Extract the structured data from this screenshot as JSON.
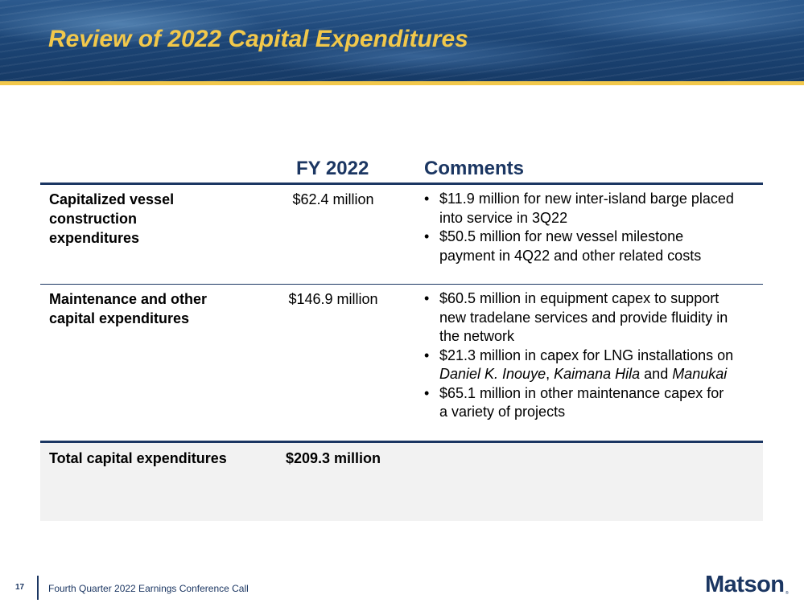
{
  "header": {
    "title": "Review of 2022 Capital Expenditures"
  },
  "table": {
    "headers": {
      "year": "FY 2022",
      "comments": "Comments"
    },
    "rows": [
      {
        "label_lines": [
          "Capitalized vessel",
          "construction",
          "expenditures"
        ],
        "value": "$62.4 million",
        "comments": [
          [
            "$11.9 million for new inter-island barge placed",
            "into service in 3Q22"
          ],
          [
            "$50.5 million for new vessel milestone",
            "payment in 4Q22 and other related costs"
          ]
        ]
      },
      {
        "label_lines": [
          "Maintenance and other",
          "capital expenditures"
        ],
        "value": "$146.9 million",
        "comments": [
          [
            "$60.5 million in equipment capex to support",
            "new tradelane services and provide fluidity in",
            "the network"
          ],
          {
            "line1": "$21.3 million in capex for LNG installations on",
            "vessel1": "Daniel K. Inouye",
            "sep1": ", ",
            "vessel2": "Kaimana Hila",
            "sep2": " and ",
            "vessel3": "Manukai"
          },
          [
            "$65.1 million in other maintenance capex for",
            "a variety of projects"
          ]
        ]
      }
    ],
    "total": {
      "label": "Total capital expenditures",
      "value": "$209.3 million"
    }
  },
  "footer": {
    "page_number": "17",
    "text": "Fourth Quarter 2022 Earnings Conference Call",
    "logo": "Matson",
    "logo_mark": "®"
  },
  "colors": {
    "navy": "#1b3662",
    "gold": "#f2c84b",
    "total_row_bg": "#f2f2f2"
  }
}
